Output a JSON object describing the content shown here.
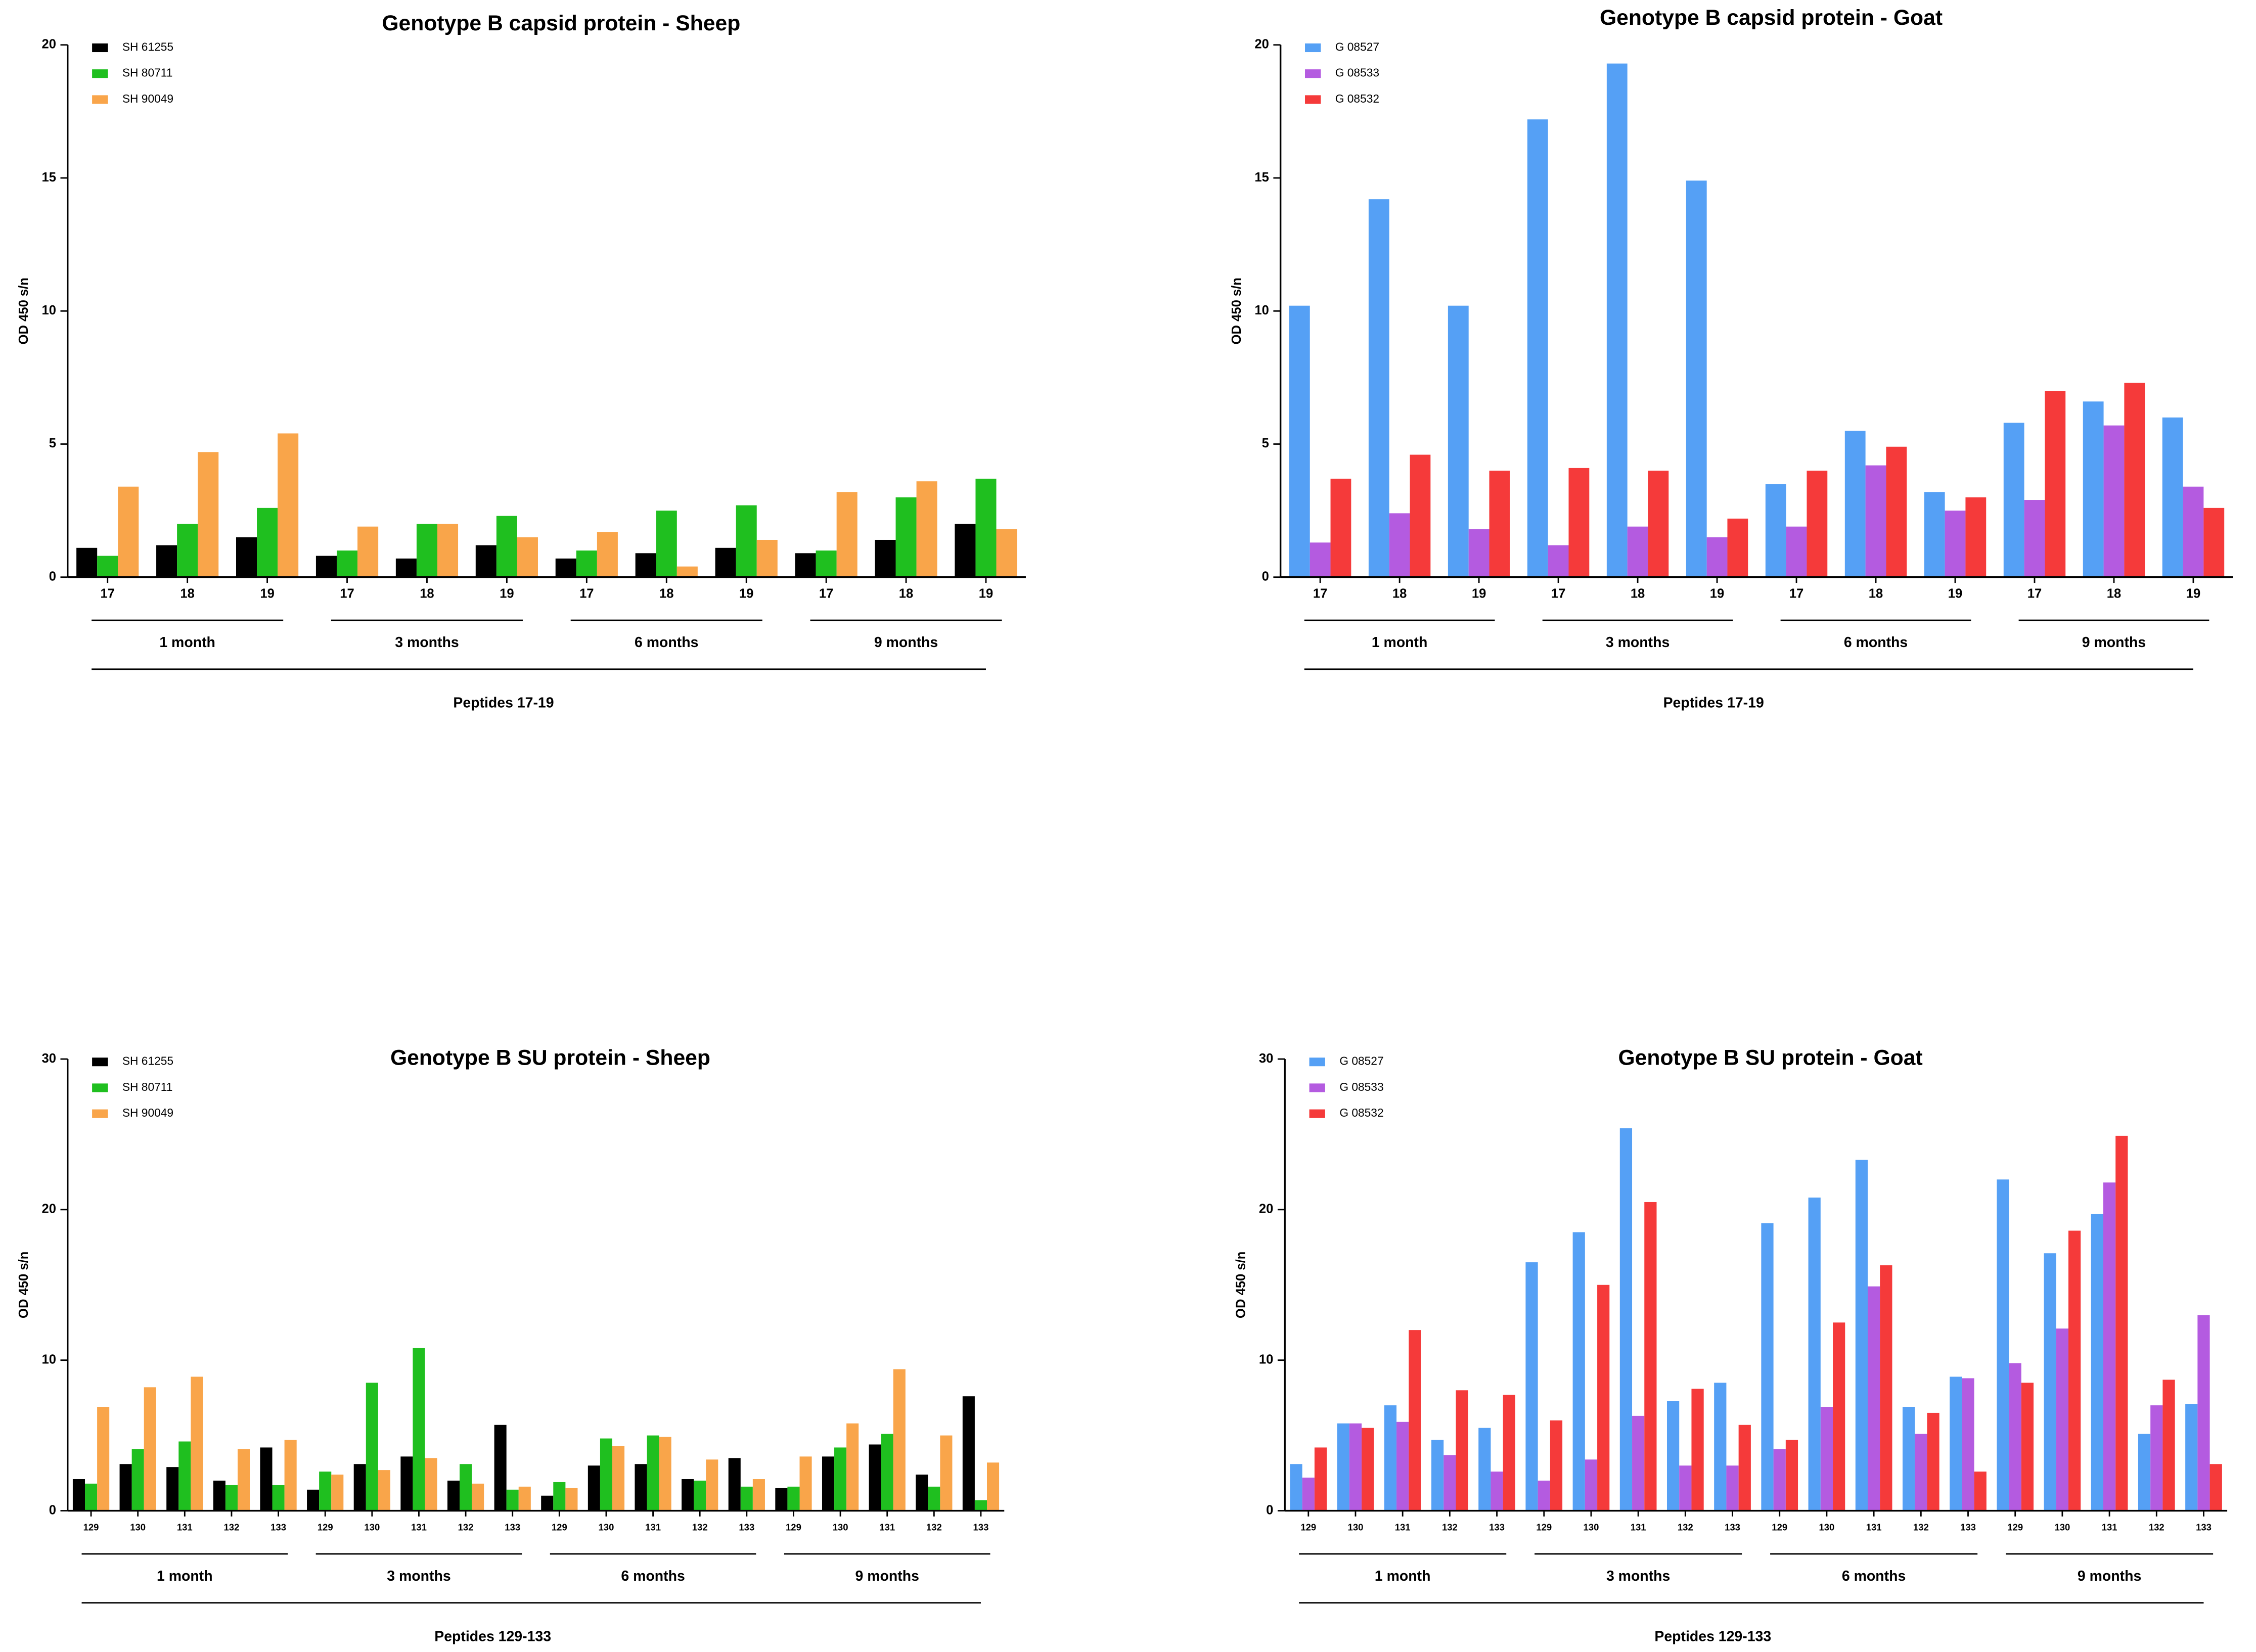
{
  "chart_data": [
    {
      "type": "bar",
      "title": "Genotype B capsid protein - Sheep",
      "ylabel": "OD 450 s/n",
      "xlabel": "Peptides 17-19",
      "categories": [
        "17",
        "18",
        "19",
        "17",
        "18",
        "19",
        "17",
        "18",
        "19",
        "17",
        "18",
        "19"
      ],
      "groups": [
        "1 month",
        "3 months",
        "6 months",
        "9 months"
      ],
      "ylim": [
        0,
        20
      ],
      "yticks": [
        0,
        5,
        10,
        15,
        20
      ],
      "legend": "upper left",
      "series": [
        {
          "name": "SH 61255",
          "color": "#000000",
          "values": [
            1.1,
            1.2,
            1.5,
            0.8,
            0.7,
            1.2,
            0.7,
            0.9,
            1.1,
            0.9,
            1.4,
            2.0
          ]
        },
        {
          "name": "SH 80711",
          "color": "#1fbf1f",
          "values": [
            0.8,
            2.0,
            2.6,
            1.0,
            2.0,
            2.3,
            1.0,
            2.5,
            2.7,
            1.0,
            3.0,
            3.7
          ]
        },
        {
          "name": "SH 90049",
          "color": "#f9a54a",
          "values": [
            3.4,
            4.7,
            5.4,
            1.9,
            2.0,
            1.5,
            1.7,
            0.4,
            1.4,
            3.2,
            3.6,
            1.8
          ]
        }
      ]
    },
    {
      "type": "bar",
      "title": "Genotype B capsid protein - Goat",
      "ylabel": "OD 450 s/n",
      "xlabel": "Peptides 17-19",
      "categories": [
        "17",
        "18",
        "19",
        "17",
        "18",
        "19",
        "17",
        "18",
        "19",
        "17",
        "18",
        "19"
      ],
      "groups": [
        "1 month",
        "3 months",
        "6 months",
        "9 months"
      ],
      "ylim": [
        0,
        20
      ],
      "yticks": [
        0,
        5,
        10,
        15,
        20
      ],
      "legend": "upper left",
      "series": [
        {
          "name": "G 08527",
          "color": "#55a0f5",
          "values": [
            10.2,
            14.2,
            10.2,
            17.2,
            19.3,
            14.9,
            3.5,
            5.5,
            3.2,
            5.8,
            6.6,
            6.0
          ]
        },
        {
          "name": "G 08533",
          "color": "#b45be0",
          "values": [
            1.3,
            2.4,
            1.8,
            1.2,
            1.9,
            1.5,
            1.9,
            4.2,
            2.5,
            2.9,
            5.7,
            3.4
          ]
        },
        {
          "name": "G 08532",
          "color": "#f53a3a",
          "values": [
            3.7,
            4.6,
            4.0,
            4.1,
            4.0,
            2.2,
            4.0,
            4.9,
            3.0,
            7.0,
            7.3,
            2.6
          ]
        }
      ]
    },
    {
      "type": "bar",
      "title": "Genotype B SU protein - Sheep",
      "ylabel": "OD 450 s/n",
      "xlabel": "Peptides 129-133",
      "categories": [
        "129",
        "130",
        "131",
        "132",
        "133",
        "129",
        "130",
        "131",
        "132",
        "133",
        "129",
        "130",
        "131",
        "132",
        "133",
        "129",
        "130",
        "131",
        "132",
        "133"
      ],
      "groups": [
        "1 month",
        "3 months",
        "6 months",
        "9 months"
      ],
      "ylim": [
        0,
        30
      ],
      "yticks": [
        0,
        10,
        20,
        30
      ],
      "legend": "upper left",
      "series": [
        {
          "name": "SH 61255",
          "color": "#000000",
          "values": [
            2.1,
            3.1,
            2.9,
            2.0,
            4.2,
            1.4,
            3.1,
            3.6,
            2.0,
            5.7,
            1.0,
            3.0,
            3.1,
            2.1,
            3.5,
            1.5,
            3.6,
            4.4,
            2.4,
            7.6
          ]
        },
        {
          "name": "SH 80711",
          "color": "#1fbf1f",
          "values": [
            1.8,
            4.1,
            4.6,
            1.7,
            1.7,
            2.6,
            8.5,
            10.8,
            3.1,
            1.4,
            1.9,
            4.8,
            5.0,
            2.0,
            1.6,
            1.6,
            4.2,
            5.1,
            1.6,
            0.7
          ]
        },
        {
          "name": "SH 90049",
          "color": "#f9a54a",
          "values": [
            6.9,
            8.2,
            8.9,
            4.1,
            4.7,
            2.4,
            2.7,
            3.5,
            1.8,
            1.6,
            1.5,
            4.3,
            4.9,
            3.4,
            2.1,
            3.6,
            5.8,
            9.4,
            5.0,
            3.2
          ]
        }
      ]
    },
    {
      "type": "bar",
      "title": "Genotype B SU protein - Goat",
      "ylabel": "OD 450 s/n",
      "xlabel": "Peptides 129-133",
      "categories": [
        "129",
        "130",
        "131",
        "132",
        "133",
        "129",
        "130",
        "131",
        "132",
        "133",
        "129",
        "130",
        "131",
        "132",
        "133",
        "129",
        "130",
        "131",
        "132",
        "133"
      ],
      "groups": [
        "1 month",
        "3 months",
        "6 months",
        "9 months"
      ],
      "ylim": [
        0,
        30
      ],
      "yticks": [
        0,
        10,
        20,
        30
      ],
      "legend": "upper left",
      "series": [
        {
          "name": "G 08527",
          "color": "#55a0f5",
          "values": [
            3.1,
            5.8,
            7.0,
            4.7,
            5.5,
            16.5,
            18.5,
            25.4,
            7.3,
            8.5,
            19.1,
            20.8,
            23.3,
            6.9,
            8.9,
            22.0,
            17.1,
            19.7,
            5.1,
            7.1
          ]
        },
        {
          "name": "G 08533",
          "color": "#b45be0",
          "values": [
            2.2,
            5.8,
            5.9,
            3.7,
            2.6,
            2.0,
            3.4,
            6.3,
            3.0,
            3.0,
            4.1,
            6.9,
            14.9,
            5.1,
            8.8,
            9.8,
            12.1,
            21.8,
            7.0,
            13.0
          ]
        },
        {
          "name": "G 08532",
          "color": "#f53a3a",
          "values": [
            4.2,
            5.5,
            12.0,
            8.0,
            7.7,
            6.0,
            15.0,
            20.5,
            8.1,
            5.7,
            4.7,
            12.5,
            16.3,
            6.5,
            2.6,
            8.5,
            18.6,
            24.9,
            8.7,
            3.1
          ]
        }
      ]
    }
  ]
}
